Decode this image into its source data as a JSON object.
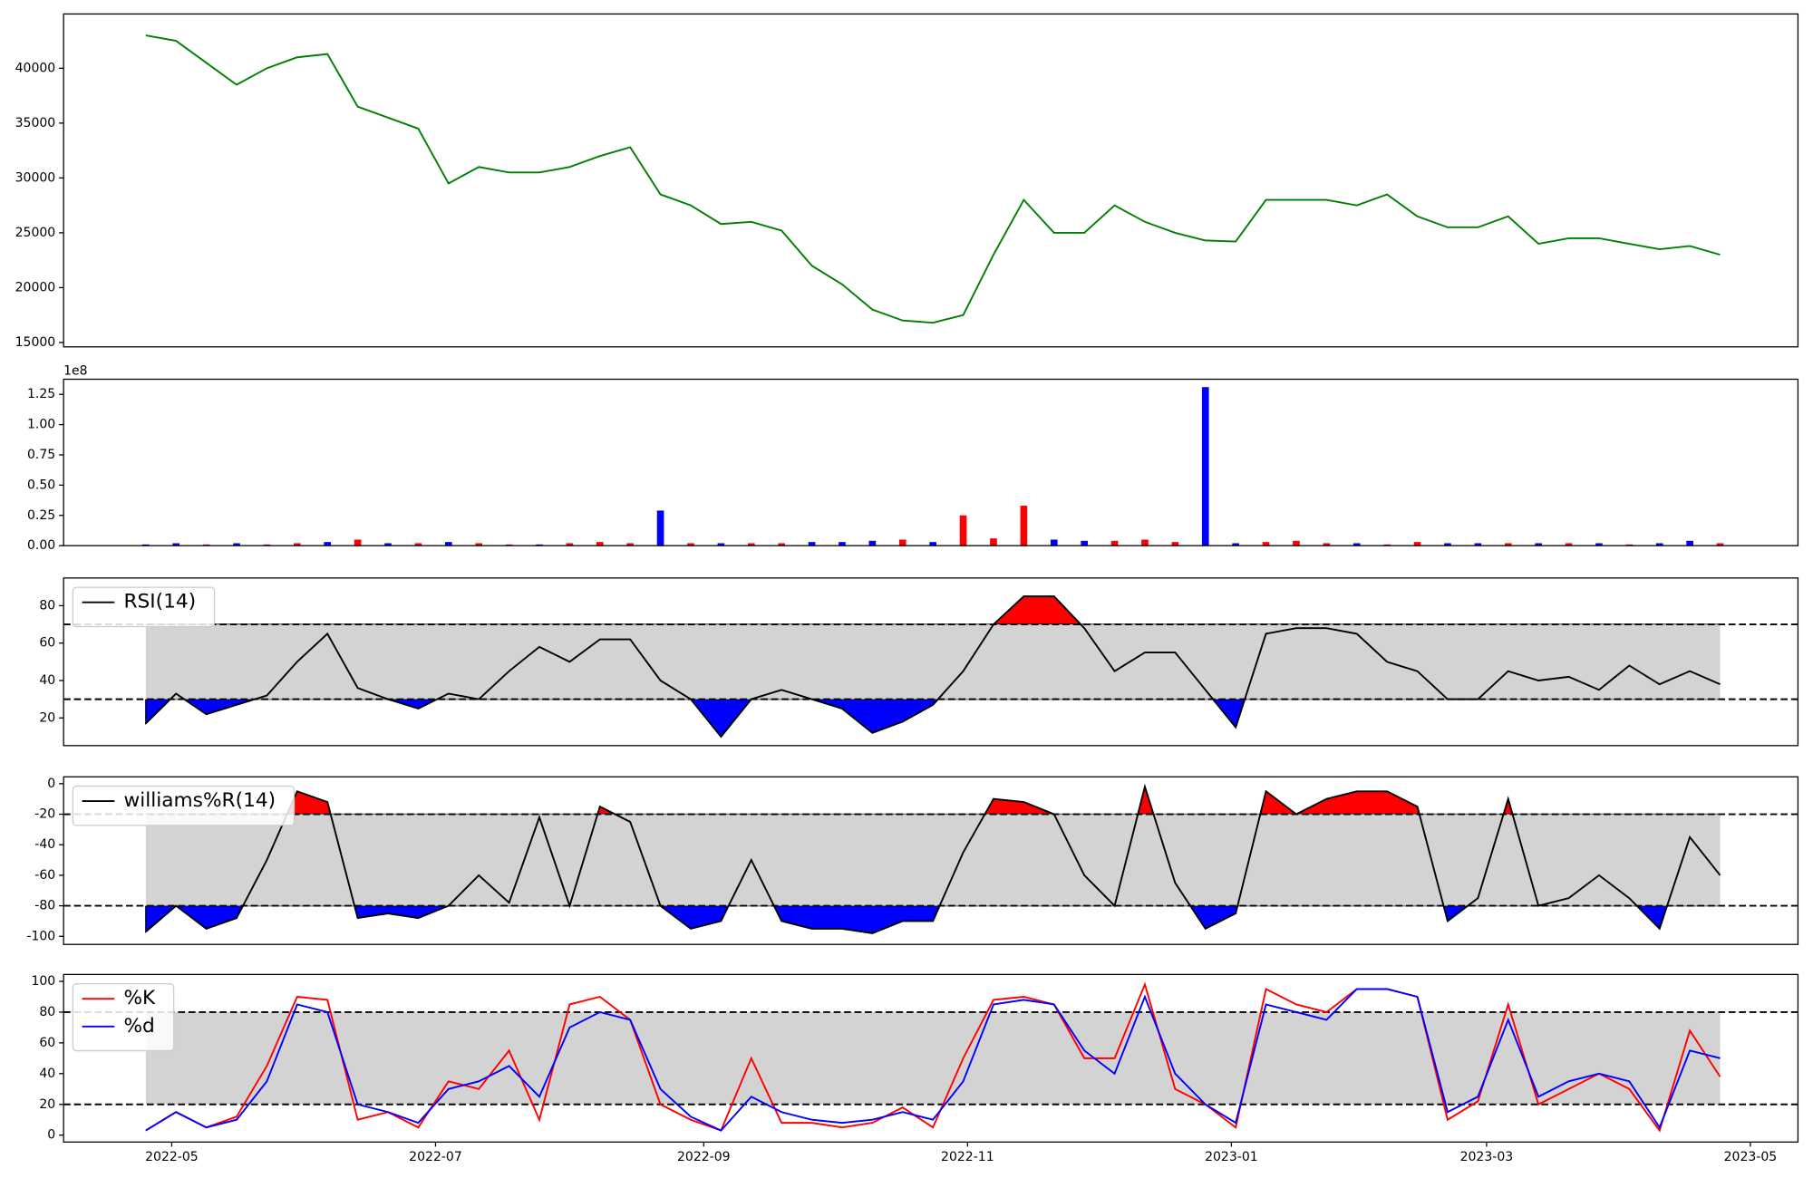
{
  "chart_data": [
    {
      "type": "line",
      "color": "green",
      "x": [
        24,
        31,
        38,
        45,
        52,
        59,
        66,
        73,
        80,
        87,
        94,
        101,
        108,
        115,
        122,
        129,
        136,
        143,
        150,
        157,
        164,
        171,
        178,
        185,
        192,
        199,
        206,
        213,
        220,
        227,
        234,
        241,
        248,
        255,
        262,
        269,
        276,
        283,
        290,
        297,
        304,
        311,
        318,
        325,
        332,
        339,
        346,
        353,
        360,
        367,
        374,
        381,
        388
      ],
      "values": [
        43000,
        42500,
        40500,
        38500,
        40000,
        41000,
        41300,
        36500,
        35500,
        34500,
        29500,
        31000,
        30500,
        30500,
        31000,
        32000,
        32800,
        28500,
        27500,
        25800,
        26000,
        25200,
        22000,
        20300,
        18000,
        17000,
        16800,
        17500,
        23000,
        28000,
        25000,
        25000,
        27500,
        26000,
        25000,
        24300,
        24200,
        28000,
        28000,
        28000,
        27500,
        28500,
        26500,
        25500,
        25500,
        26500,
        24000,
        24500,
        24500,
        24000,
        23500,
        23800,
        23000
      ],
      "xlim": [
        5,
        406
      ],
      "ylim": [
        14600,
        44950
      ],
      "yticks": [
        15000,
        20000,
        25000,
        30000,
        35000,
        40000
      ]
    },
    {
      "type": "bar",
      "offset_label": "1e8",
      "x": [
        24,
        31,
        38,
        45,
        52,
        59,
        66,
        73,
        80,
        87,
        94,
        101,
        108,
        115,
        122,
        129,
        136,
        143,
        150,
        157,
        164,
        171,
        178,
        185,
        192,
        199,
        206,
        213,
        220,
        227,
        234,
        241,
        248,
        255,
        262,
        269,
        276,
        283,
        290,
        297,
        304,
        311,
        318,
        325,
        332,
        339,
        346,
        353,
        360,
        367,
        374,
        381,
        388
      ],
      "values": [
        0.01,
        0.02,
        0.01,
        0.02,
        0.01,
        0.02,
        0.03,
        0.05,
        0.02,
        0.02,
        0.03,
        0.02,
        0.01,
        0.01,
        0.02,
        0.03,
        0.02,
        0.29,
        0.02,
        0.02,
        0.02,
        0.02,
        0.03,
        0.03,
        0.04,
        0.05,
        0.03,
        0.25,
        0.06,
        0.33,
        0.05,
        0.04,
        0.04,
        0.05,
        0.03,
        1.31,
        0.02,
        0.03,
        0.04,
        0.02,
        0.02,
        0.01,
        0.03,
        0.02,
        0.02,
        0.02,
        0.02,
        0.02,
        0.02,
        0.01,
        0.02,
        0.04,
        0.02
      ],
      "colors": [
        "blue",
        "blue",
        "red",
        "blue",
        "red",
        "red",
        "blue",
        "red",
        "blue",
        "red",
        "blue",
        "red",
        "red",
        "blue",
        "red",
        "red",
        "red",
        "blue",
        "red",
        "blue",
        "red",
        "red",
        "blue",
        "blue",
        "blue",
        "red",
        "blue",
        "red",
        "red",
        "red",
        "blue",
        "blue",
        "red",
        "red",
        "red",
        "blue",
        "blue",
        "red",
        "red",
        "red",
        "blue",
        "red",
        "red",
        "blue",
        "blue",
        "red",
        "blue",
        "red",
        "blue",
        "red",
        "blue",
        "blue",
        "red"
      ],
      "xlim": [
        5,
        406
      ],
      "ylim": [
        0,
        1.375
      ],
      "yticks": [
        {
          "value": 0,
          "label": "0.00"
        },
        {
          "value": 0.25,
          "label": "0.25"
        },
        {
          "value": 0.5,
          "label": "0.50"
        },
        {
          "value": 0.75,
          "label": "0.75"
        },
        {
          "value": 1,
          "label": "1.00"
        },
        {
          "value": 1.25,
          "label": "1.25"
        }
      ]
    },
    {
      "type": "line",
      "x": [
        24,
        31,
        38,
        45,
        52,
        59,
        66,
        73,
        80,
        87,
        94,
        101,
        108,
        115,
        122,
        129,
        136,
        143,
        150,
        157,
        164,
        171,
        178,
        185,
        192,
        199,
        206,
        213,
        220,
        227,
        234,
        241,
        248,
        255,
        262,
        269,
        276,
        283,
        290,
        297,
        304,
        311,
        318,
        325,
        332,
        339,
        346,
        353,
        360,
        367,
        374,
        381,
        388
      ],
      "series": [
        {
          "name": "RSI(14)",
          "color": "black",
          "values": [
            17,
            33,
            22,
            27,
            32,
            50,
            65,
            36,
            30,
            25,
            33,
            30,
            45,
            58,
            50,
            62,
            62,
            40,
            30,
            10,
            30,
            35,
            30,
            25,
            12,
            18,
            27,
            45,
            70,
            85,
            85,
            68,
            45,
            55,
            55,
            35,
            15,
            65,
            68,
            68,
            65,
            50,
            45,
            30,
            30,
            45,
            40,
            42,
            35,
            48,
            38,
            45,
            38
          ]
        }
      ],
      "hlines": [
        30,
        70
      ],
      "band_color": "lightgray",
      "fill_above_color": "red",
      "fill_below_color": "blue",
      "legend": "upper left",
      "xlim": [
        5,
        406
      ],
      "ylim": [
        5.2,
        94.8
      ],
      "yticks": [
        20,
        40,
        60,
        80
      ]
    },
    {
      "type": "line",
      "x": [
        24,
        31,
        38,
        45,
        52,
        59,
        66,
        73,
        80,
        87,
        94,
        101,
        108,
        115,
        122,
        129,
        136,
        143,
        150,
        157,
        164,
        171,
        178,
        185,
        192,
        199,
        206,
        213,
        220,
        227,
        234,
        241,
        248,
        255,
        262,
        269,
        276,
        283,
        290,
        297,
        304,
        311,
        318,
        325,
        332,
        339,
        346,
        353,
        360,
        367,
        374,
        381,
        388
      ],
      "series": [
        {
          "name": "williams%R(14)",
          "color": "black",
          "values": [
            -97,
            -80,
            -95,
            -88,
            -50,
            -5,
            -12,
            -88,
            -85,
            -88,
            -80,
            -60,
            -78,
            -22,
            -80,
            -15,
            -25,
            -80,
            -95,
            -90,
            -50,
            -90,
            -95,
            -95,
            -98,
            -90,
            -90,
            -45,
            -10,
            -12,
            -20,
            -60,
            -80,
            -2,
            -65,
            -95,
            -85,
            -5,
            -20,
            -10,
            -5,
            -5,
            -15,
            -90,
            -75,
            -10,
            -80,
            -75,
            -60,
            -75,
            -95,
            -35,
            -60
          ]
        }
      ],
      "hlines": [
        -80,
        -20
      ],
      "band_color": "lightgray",
      "fill_above_color": "red",
      "fill_below_color": "blue",
      "legend": "upper left",
      "xlim": [
        5,
        406
      ],
      "ylim": [
        -105.3,
        4.5
      ],
      "yticks": [
        -100,
        -80,
        -60,
        -40,
        -20,
        0
      ]
    },
    {
      "type": "line",
      "x": [
        24,
        31,
        38,
        45,
        52,
        59,
        66,
        73,
        80,
        87,
        94,
        101,
        108,
        115,
        122,
        129,
        136,
        143,
        150,
        157,
        164,
        171,
        178,
        185,
        192,
        199,
        206,
        213,
        220,
        227,
        234,
        241,
        248,
        255,
        262,
        269,
        276,
        283,
        290,
        297,
        304,
        311,
        318,
        325,
        332,
        339,
        346,
        353,
        360,
        367,
        374,
        381,
        388
      ],
      "series": [
        {
          "name": "%K",
          "color": "red",
          "values": [
            3,
            15,
            5,
            12,
            45,
            90,
            88,
            10,
            15,
            5,
            35,
            30,
            55,
            10,
            85,
            90,
            75,
            20,
            10,
            3,
            50,
            8,
            8,
            5,
            8,
            18,
            5,
            50,
            88,
            90,
            85,
            50,
            50,
            98,
            30,
            20,
            5,
            95,
            85,
            80,
            95,
            95,
            90,
            10,
            22,
            85,
            20,
            30,
            40,
            30,
            3,
            68,
            38
          ]
        },
        {
          "name": "%d",
          "color": "blue",
          "values": [
            3,
            15,
            5,
            10,
            35,
            85,
            80,
            20,
            15,
            8,
            30,
            35,
            45,
            25,
            70,
            80,
            75,
            30,
            12,
            3,
            25,
            15,
            10,
            8,
            10,
            15,
            10,
            35,
            85,
            88,
            85,
            55,
            40,
            90,
            40,
            20,
            8,
            85,
            80,
            75,
            95,
            95,
            90,
            15,
            25,
            75,
            25,
            35,
            40,
            35,
            5,
            55,
            50
          ]
        }
      ],
      "hlines": [
        20,
        80
      ],
      "band_color": "lightgray",
      "legend": "upper left",
      "xlim": [
        5,
        406
      ],
      "ylim": [
        -4.5,
        104.5
      ],
      "yticks": [
        0,
        20,
        40,
        60,
        80,
        100
      ],
      "xticks": [
        {
          "value": 30,
          "label": "2022-05"
        },
        {
          "value": 91,
          "label": "2022-07"
        },
        {
          "value": 153,
          "label": "2022-09"
        },
        {
          "value": 214,
          "label": "2022-11"
        },
        {
          "value": 275,
          "label": "2023-01"
        },
        {
          "value": 334,
          "label": "2023-03"
        },
        {
          "value": 395,
          "label": "2023-05"
        }
      ]
    }
  ]
}
